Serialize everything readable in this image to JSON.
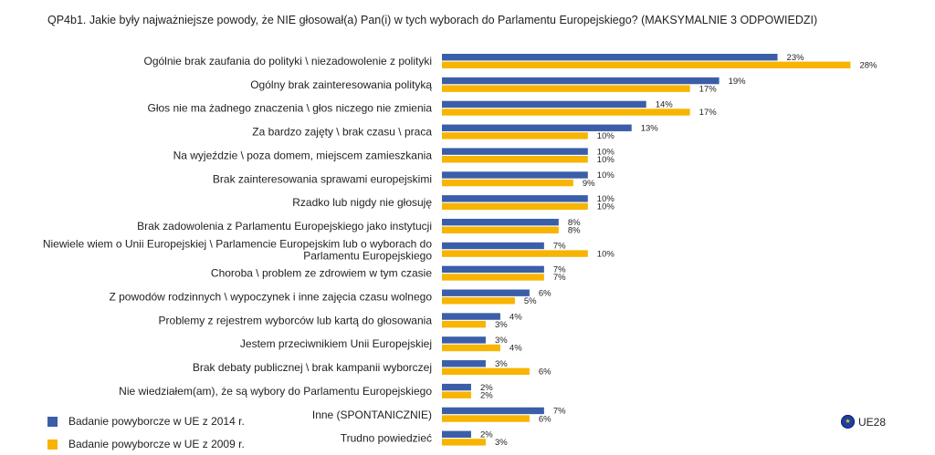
{
  "title": "QP4b1. Jakie były najważniejsze powody, że NIE głosował(a) Pan(i) w tych wyborach do Parlamentu Europejskiego? (MAKSYMALNIE 3 ODPOWIEDZI)",
  "region_label": "UE28",
  "region_icon": "eu-flag-icon",
  "colors": {
    "series_2014": "#3b5ea8",
    "series_2009": "#f7b400"
  },
  "chart_data": {
    "type": "bar",
    "orientation": "horizontal",
    "value_suffix": "%",
    "categories": [
      [
        "Ogólnie brak zaufania do polityki \\ niezadowolenie z polityki"
      ],
      [
        "Ogólny brak zainteresowania polityką"
      ],
      [
        "Głos nie ma żadnego znaczenia \\ głos niczego nie zmienia"
      ],
      [
        "Za bardzo zajęty \\ brak czasu \\ praca"
      ],
      [
        "Na wyjeździe \\ poza domem, miejscem zamieszkania"
      ],
      [
        "Brak zainteresowania sprawami europejskimi"
      ],
      [
        "Rzadko lub nigdy nie głosuję"
      ],
      [
        "Brak zadowolenia z Parlamentu Europejskiego jako instytucji"
      ],
      [
        "Niewiele wiem o Unii Europejskiej \\ Parlamencie Europejskim lub o wyborach do",
        "Parlamentu Europejskiego"
      ],
      [
        "Choroba \\ problem ze zdrowiem w tym czasie"
      ],
      [
        "Z powodów rodzinnych \\ wypoczynek i inne zajęcia czasu wolnego"
      ],
      [
        "Problemy z rejestrem wyborców lub kartą do głosowania"
      ],
      [
        "Jestem przeciwnikiem Unii Europejskiej"
      ],
      [
        "Brak debaty publicznej \\ brak kampanii wyborczej"
      ],
      [
        "Nie wiedziałem(am), że są wybory do Parlamentu Europejskiego"
      ],
      [
        "Inne (SPONTANICZNIE)"
      ],
      [
        "Trudno powiedzieć"
      ]
    ],
    "series": [
      {
        "name": "Badanie powyborcze w UE z 2014 r.",
        "values": [
          23,
          19,
          14,
          13,
          10,
          10,
          10,
          8,
          7,
          7,
          6,
          4,
          3,
          3,
          2,
          7,
          2
        ]
      },
      {
        "name": "Badanie powyborcze w UE z 2009 r.",
        "values": [
          28,
          17,
          17,
          10,
          10,
          9,
          10,
          8,
          10,
          7,
          5,
          3,
          4,
          6,
          2,
          6,
          3
        ]
      }
    ],
    "xlim": [
      0,
      30
    ],
    "grid": false,
    "legend_position": "bottom-left"
  }
}
